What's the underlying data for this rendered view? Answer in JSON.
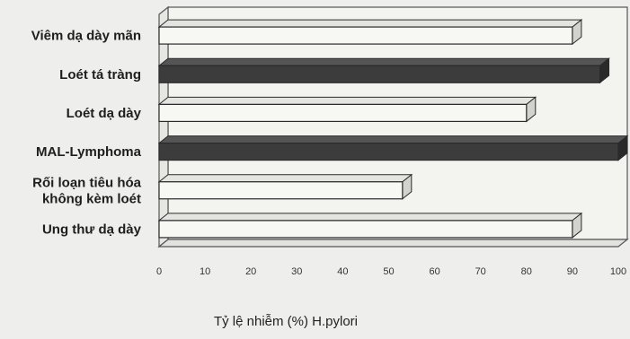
{
  "chart_data": {
    "type": "bar",
    "orientation": "horizontal",
    "style": "3d",
    "categories": [
      [
        "Viêm dạ dày mãn"
      ],
      [
        "Loét tá tràng"
      ],
      [
        "Loét dạ dày"
      ],
      [
        "MAL-Lymphoma"
      ],
      [
        "Rối loạn tiêu hóa",
        "không kèm loét"
      ],
      [
        "Ung thư dạ dày"
      ]
    ],
    "values": [
      90,
      96,
      80,
      100,
      53,
      90
    ],
    "bar_fill": [
      "light",
      "dark",
      "light",
      "dark",
      "light",
      "light"
    ],
    "xlabel": "Tỷ lệ nhiễm (%) H.pylori",
    "ylabel": "",
    "xlim": [
      0,
      100
    ],
    "x_ticks": [
      "0",
      "10",
      "20",
      "30",
      "40",
      "50",
      "60",
      "70",
      "80",
      "90",
      "100"
    ],
    "grid": false,
    "legend": "none",
    "colors": {
      "light": "#f7f7f4",
      "dark": "#3c3c3c",
      "outline": "#2a2a2a",
      "frame": "#555555"
    }
  }
}
